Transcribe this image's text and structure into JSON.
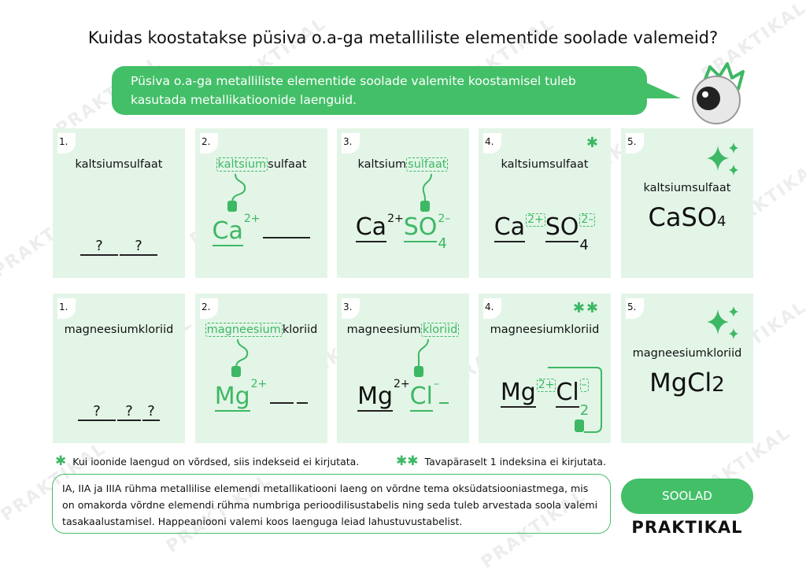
{
  "title": "Kuidas koostatakse püsiva o.a-ga metalliliste elementide soolade valemeid?",
  "bubble": "Püsiva o.a-ga metalliliste elementide soolade valemite koostamisel tuleb kasutada metallikatioonide laenguid.",
  "rows": [
    {
      "cards": [
        {
          "number": "1.",
          "name": "kaltsiumsulfaat",
          "blanks": [
            "?",
            "?"
          ]
        },
        {
          "number": "2.",
          "name": [
            "kaltsium",
            "sulfaat"
          ],
          "cation": "Ca",
          "cation_charge": "2+"
        },
        {
          "number": "3.",
          "name": [
            "kaltsium",
            "sulfaat"
          ],
          "cation": "Ca",
          "cation_charge": "2+",
          "anion": "SO",
          "anion_sub": "4",
          "anion_charge": "2–"
        },
        {
          "number": "4.",
          "name": "kaltsiumsulfaat",
          "star": "✱",
          "cation": "Ca",
          "cation_charge": "2+",
          "anion": "SO",
          "anion_sub": "4",
          "anion_charge": "2–"
        },
        {
          "number": "5.",
          "name": "kaltsiumsulfaat",
          "formula": "CaSO",
          "formula_sub": "4"
        }
      ]
    },
    {
      "cards": [
        {
          "number": "1.",
          "name": "magneesiumkloriid",
          "blanks": [
            "?",
            "?",
            "?"
          ]
        },
        {
          "number": "2.",
          "name": [
            "magneesium",
            "kloriid"
          ],
          "cation": "Mg",
          "cation_charge": "2+"
        },
        {
          "number": "3.",
          "name": [
            "magneesium",
            "kloriid"
          ],
          "cation": "Mg",
          "cation_charge": "2+",
          "anion": "Cl",
          "anion_charge": "–"
        },
        {
          "number": "4.",
          "name": "magneesiumkloriid",
          "star": "✱✱",
          "cation": "Mg",
          "cation_charge": "2+",
          "anion": "Cl",
          "anion_charge": "–",
          "anion_sub": "2"
        },
        {
          "number": "5.",
          "name": "magneesiumkloriid",
          "formula": "MgCl",
          "formula_sub": "2"
        }
      ]
    }
  ],
  "footnotes": [
    {
      "marker": "✱",
      "text": "Kui ioonide laengud on võrdsed, siis indekseid ei kirjutata."
    },
    {
      "marker": "✱✱",
      "text": "Tavapäraselt 1 indeksina ei kirjutata."
    }
  ],
  "info": "IA, IIA ja IIIA rühma metallilise elemendi metallikatiooni laeng on võrdne tema oksüdatsiooniastmega, mis  on omakorda võrdne elemendi rühma numbriga perioodilisustabelis ning seda tuleb arvestada soola valemi tasakaalustamisel. Happeaniooni valemi koos laenguga leiad lahustuvustabelist.",
  "button": "SOOLAD",
  "logo": "PRAKTIKAL",
  "watermark": "PRAKTIKAL"
}
